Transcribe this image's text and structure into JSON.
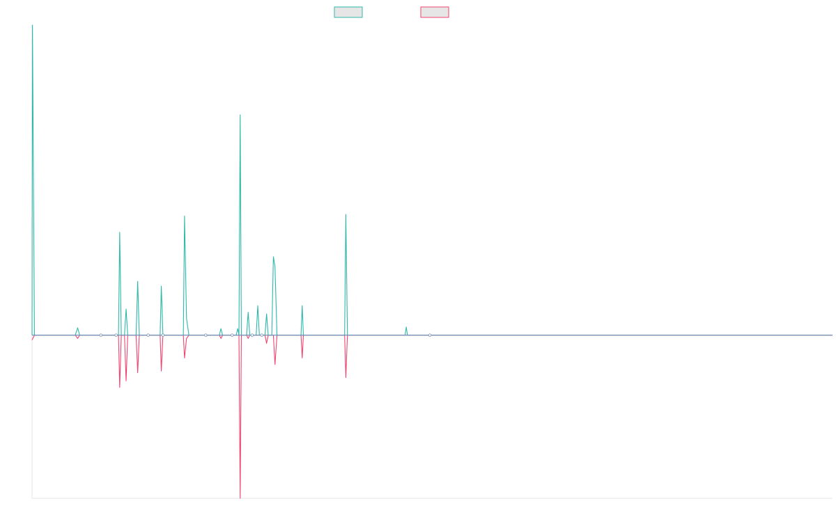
{
  "colors": {
    "series_pos": "#2fb8a9",
    "series_neg": "#f0436f",
    "baseline": "#6f8fb5",
    "legend_fill": "#e6e6e6",
    "axis": "#e6e6e6"
  },
  "chart_data": {
    "type": "line",
    "title": "",
    "xlabel": "",
    "ylabel": "",
    "xlim": [
      0,
      100
    ],
    "ylim": [
      -100,
      190
    ],
    "grid": false,
    "legend": "top-center",
    "series": [
      {
        "key": "positive",
        "color": "#2fb8a9",
        "values": [
          [
            0,
            0
          ],
          [
            0.05,
            190
          ],
          [
            0.3,
            0
          ],
          [
            5.4,
            0
          ],
          [
            5.7,
            4.5
          ],
          [
            5.95,
            0
          ],
          [
            8.6,
            0
          ],
          [
            10.5,
            0
          ],
          [
            10.8,
            0
          ],
          [
            10.95,
            63
          ],
          [
            11.15,
            0
          ],
          [
            11.55,
            0
          ],
          [
            11.75,
            16
          ],
          [
            11.95,
            0
          ],
          [
            13.0,
            0
          ],
          [
            13.2,
            33
          ],
          [
            13.4,
            0
          ],
          [
            16.0,
            0
          ],
          [
            16.15,
            30
          ],
          [
            16.35,
            0
          ],
          [
            18.9,
            0
          ],
          [
            19.05,
            73
          ],
          [
            19.3,
            10
          ],
          [
            19.6,
            0
          ],
          [
            21.7,
            0
          ],
          [
            23.4,
            0
          ],
          [
            23.6,
            4
          ],
          [
            23.8,
            0
          ],
          [
            25.5,
            0
          ],
          [
            25.7,
            4
          ],
          [
            25.85,
            0
          ],
          [
            26.0,
            135
          ],
          [
            26.15,
            0
          ],
          [
            26.8,
            0
          ],
          [
            27.0,
            14
          ],
          [
            27.2,
            0
          ],
          [
            28.0,
            0
          ],
          [
            28.2,
            18
          ],
          [
            28.4,
            0
          ],
          [
            29.1,
            0
          ],
          [
            29.3,
            13
          ],
          [
            29.5,
            0
          ],
          [
            29.95,
            0
          ],
          [
            30.15,
            48
          ],
          [
            30.35,
            42
          ],
          [
            30.6,
            0
          ],
          [
            33.6,
            0
          ],
          [
            33.75,
            18
          ],
          [
            33.9,
            0
          ],
          [
            38.9,
            0
          ],
          [
            39.05,
            0
          ],
          [
            39.2,
            74
          ],
          [
            39.4,
            0
          ],
          [
            46.6,
            0
          ],
          [
            46.75,
            5
          ],
          [
            46.9,
            0
          ],
          [
            49.7,
            0
          ],
          [
            100,
            0
          ]
        ]
      },
      {
        "key": "negative",
        "color": "#f0436f",
        "values": [
          [
            0,
            -3
          ],
          [
            0.3,
            0
          ],
          [
            5.4,
            0
          ],
          [
            5.7,
            -2
          ],
          [
            5.95,
            0
          ],
          [
            10.8,
            0
          ],
          [
            10.95,
            -32
          ],
          [
            11.15,
            0
          ],
          [
            11.55,
            0
          ],
          [
            11.75,
            -28
          ],
          [
            11.95,
            0
          ],
          [
            13.0,
            0
          ],
          [
            13.2,
            -23
          ],
          [
            13.4,
            0
          ],
          [
            16.0,
            0
          ],
          [
            16.15,
            -22
          ],
          [
            16.35,
            0
          ],
          [
            18.9,
            0
          ],
          [
            19.05,
            -14
          ],
          [
            19.3,
            -2
          ],
          [
            19.6,
            0
          ],
          [
            23.4,
            0
          ],
          [
            23.6,
            -2
          ],
          [
            23.8,
            0
          ],
          [
            25.85,
            0
          ],
          [
            26.0,
            -100
          ],
          [
            26.15,
            0
          ],
          [
            26.8,
            0
          ],
          [
            27.0,
            -2
          ],
          [
            27.2,
            0
          ],
          [
            29.1,
            0
          ],
          [
            29.3,
            -5
          ],
          [
            29.5,
            0
          ],
          [
            30.15,
            0
          ],
          [
            30.35,
            -18
          ],
          [
            30.6,
            0
          ],
          [
            33.6,
            0
          ],
          [
            33.75,
            -14
          ],
          [
            33.9,
            0
          ],
          [
            39.05,
            0
          ],
          [
            39.2,
            -26
          ],
          [
            39.4,
            0
          ],
          [
            100,
            0
          ]
        ]
      }
    ]
  }
}
